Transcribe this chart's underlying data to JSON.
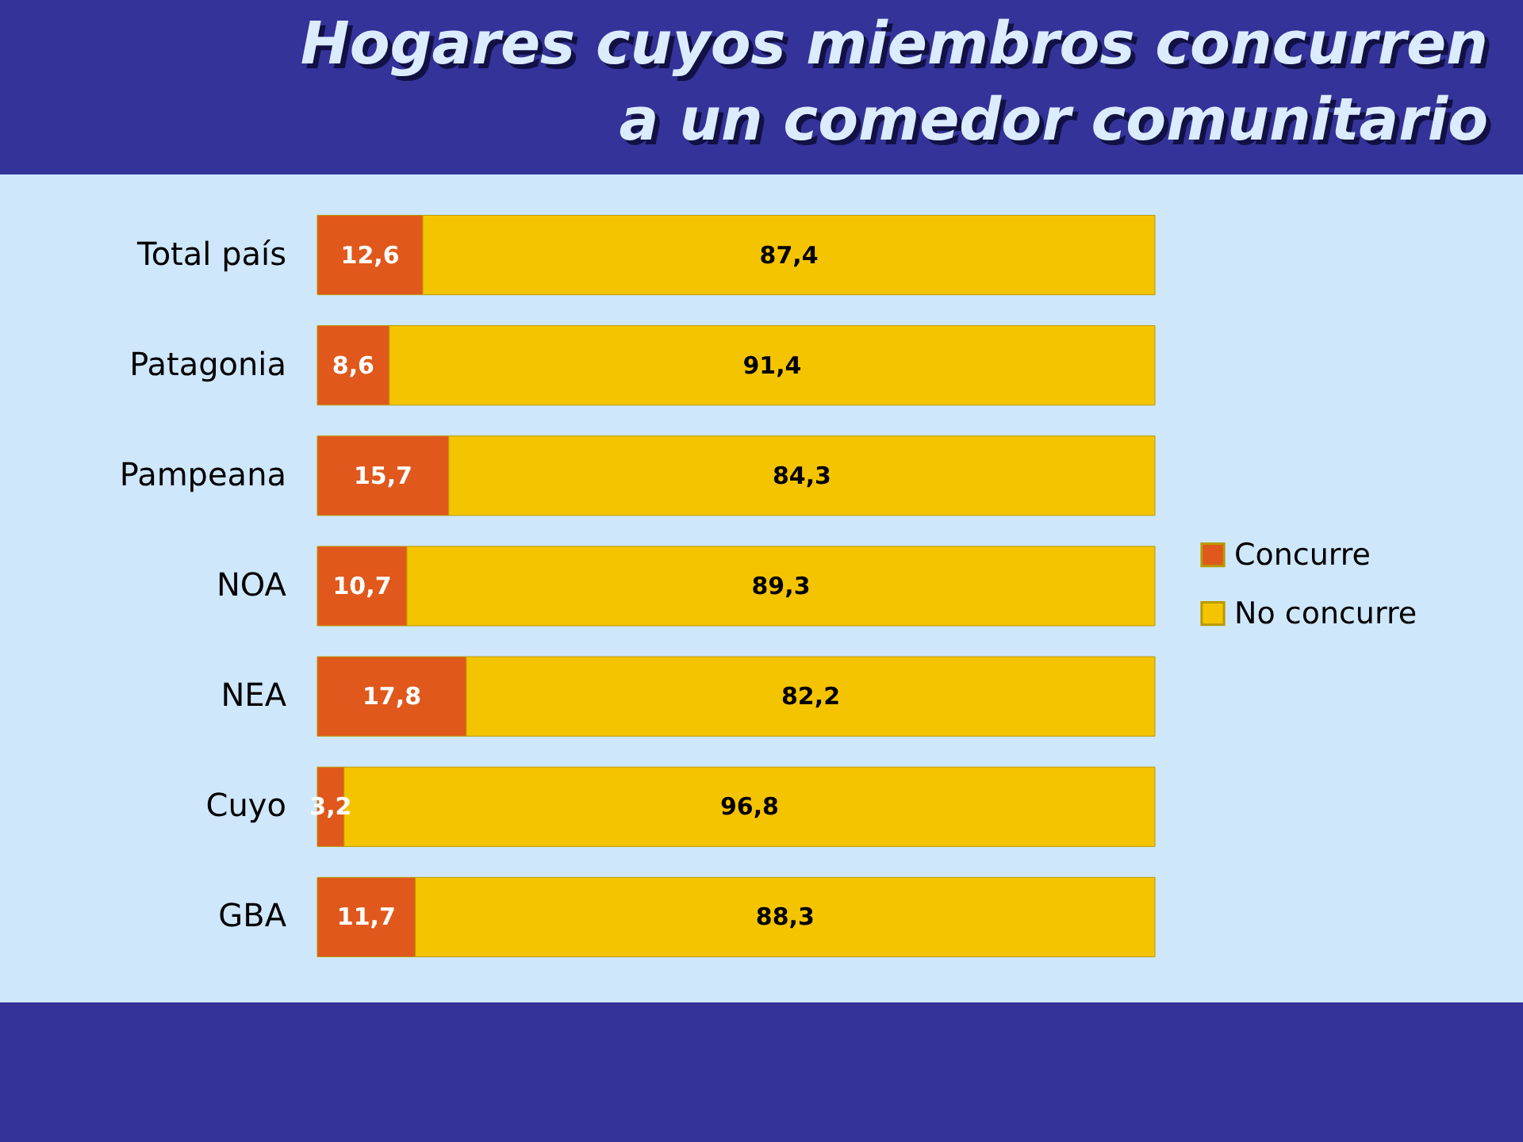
{
  "chart_data": {
    "type": "bar",
    "orientation": "horizontal",
    "stacked": true,
    "title": "Hogares cuyos miembros concurren\na un comedor comunitario",
    "categories": [
      "Total país",
      "Patagonia",
      "Pampeana",
      "NOA",
      "NEA",
      "Cuyo",
      "GBA"
    ],
    "series": [
      {
        "name": "Concurre",
        "color": "#e0581c",
        "values": [
          12.6,
          8.6,
          15.7,
          10.7,
          17.8,
          3.2,
          11.7
        ],
        "value_labels": [
          "12,6",
          "8,6",
          "15,7",
          "10,7",
          "17,8",
          "3,2",
          "11,7"
        ]
      },
      {
        "name": "No concurre",
        "color": "#f5c400",
        "values": [
          87.4,
          91.4,
          84.3,
          89.3,
          82.2,
          96.8,
          88.3
        ],
        "value_labels": [
          "87,4",
          "91,4",
          "84,3",
          "89,3",
          "82,2",
          "96,8",
          "88,3"
        ]
      }
    ],
    "tick_labels": "y",
    "legend": "right"
  }
}
